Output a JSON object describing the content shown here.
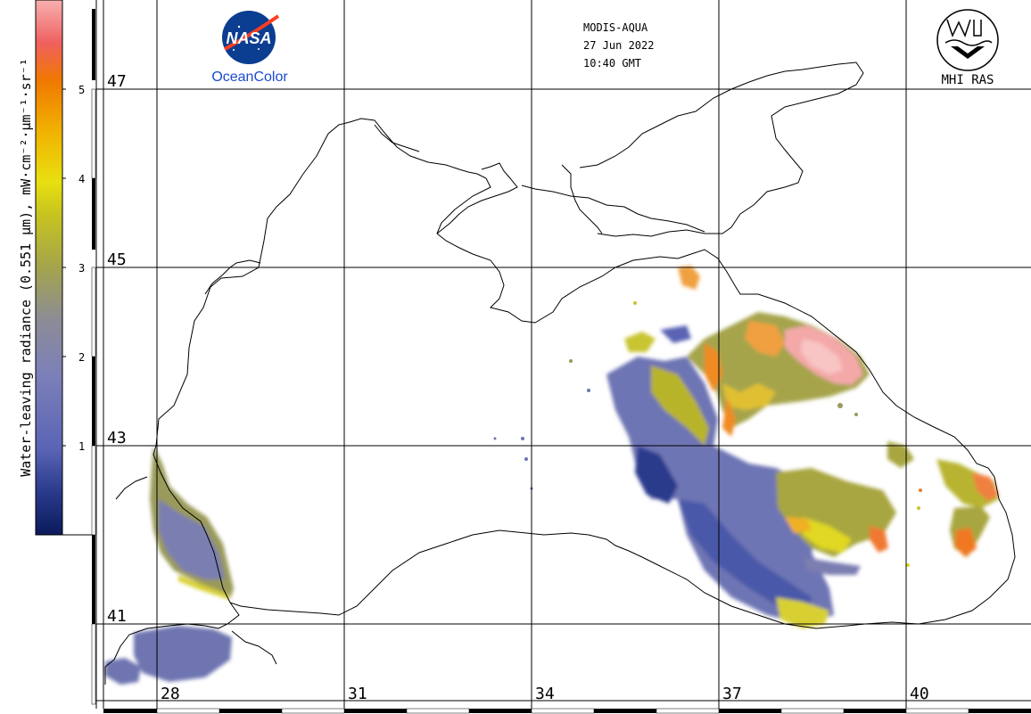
{
  "header": {
    "sensor": "MODIS-AQUA",
    "date": "27 Jun 2022",
    "time": "10:40 GMT"
  },
  "logos": {
    "nasa_text": "NASA",
    "oceancolor_text": "OceanColor",
    "mhi_text": "MHI RAS"
  },
  "colorbar": {
    "label": "Water-leaving radiance (0.551 µm), mW·cm⁻²·µm⁻¹·sr⁻¹",
    "ticks": [
      "1",
      "2",
      "3",
      "4",
      "5"
    ],
    "colors": [
      "#0a1a5c",
      "#3a4aa0",
      "#6a74c0",
      "#8a8aa8",
      "#9a9a60",
      "#b6b42a",
      "#e6e010",
      "#f0b000",
      "#f07a00",
      "#f05050",
      "#f8a8a8"
    ]
  },
  "grid": {
    "lat_labels": [
      "47",
      "45",
      "43",
      "41"
    ],
    "lon_labels": [
      "28",
      "31",
      "34",
      "37",
      "40"
    ]
  }
}
